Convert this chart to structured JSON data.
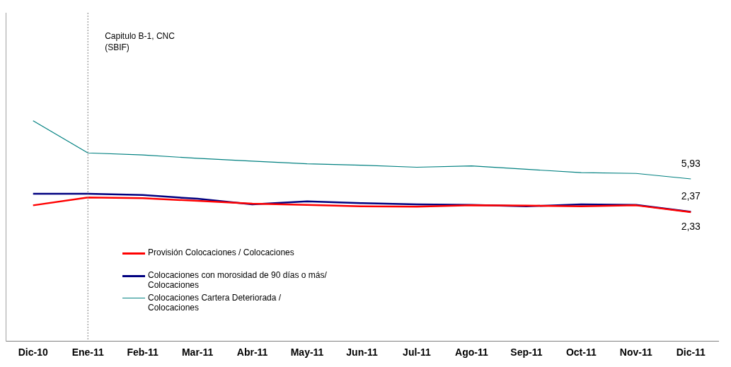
{
  "chart_data": {
    "type": "line",
    "categories": [
      "Dic-10",
      "Ene-11",
      "Feb-11",
      "Mar-11",
      "Abr-11",
      "May-11",
      "Jun-11",
      "Jul-11",
      "Ago-11",
      "Sep-11",
      "Oct-11",
      "Nov-11",
      "Dic-11"
    ],
    "series": [
      {
        "name": "Provisión Colocaciones / Colocaciones",
        "color": "#ff0000",
        "values": [
          3.07,
          3.92,
          3.85,
          3.55,
          3.26,
          3.11,
          2.96,
          2.93,
          3.07,
          3.04,
          2.96,
          3.07,
          2.33
        ],
        "value_labels": [
          null,
          null,
          null,
          null,
          null,
          null,
          null,
          null,
          null,
          null,
          null,
          null,
          "2,33"
        ]
      },
      {
        "name": "Colocaciones con morosidad de 90 días o más/ Colocaciones",
        "color": "#000080",
        "values": [
          4.33,
          4.33,
          4.18,
          3.78,
          3.18,
          3.5,
          3.3,
          3.18,
          3.11,
          2.96,
          3.18,
          3.11,
          2.37
        ],
        "value_labels": [
          null,
          null,
          null,
          null,
          null,
          null,
          null,
          null,
          null,
          null,
          null,
          null,
          "2,37"
        ]
      },
      {
        "name": "Colocaciones Cartera Deteriorada / Colocaciones",
        "color": "#008080",
        "values": [
          12.22,
          8.74,
          8.52,
          8.15,
          7.85,
          7.56,
          7.41,
          7.19,
          7.34,
          6.97,
          6.6,
          6.52,
          5.93
        ],
        "value_labels": [
          null,
          null,
          null,
          null,
          null,
          null,
          null,
          null,
          null,
          null,
          null,
          null,
          "5,93"
        ]
      }
    ],
    "ylim": [
      -11.6,
      23.9
    ],
    "tick_labels": "x",
    "grid": false,
    "legend": "bottom left",
    "marker": "none",
    "ref_lines": [
      {
        "axis": "x",
        "value": "Ene-11",
        "label": "Capitulo B-1, CNC (SBIF)",
        "color": "#808080",
        "line_style": "dotted"
      }
    ]
  }
}
